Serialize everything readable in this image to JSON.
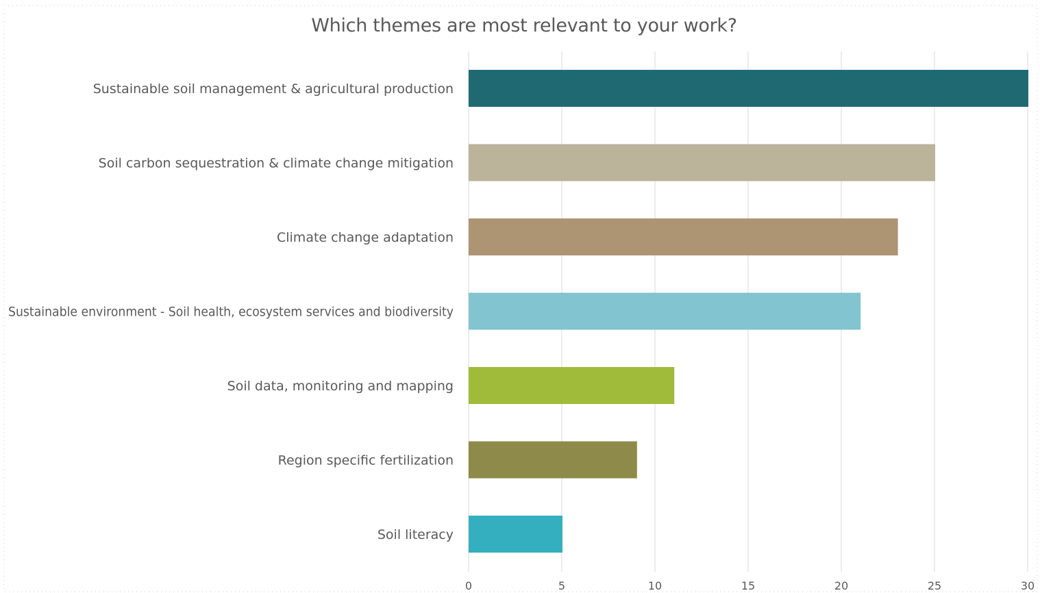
{
  "chart_data": {
    "type": "bar",
    "orientation": "horizontal",
    "title": "Which themes are most relevant to your work?",
    "xlabel": "",
    "ylabel": "",
    "categories": [
      "Sustainable soil management & agricultural production",
      "Soil carbon sequestration & climate change mitigation",
      "Climate change adaptation",
      "Sustainable environment - Soil health, ecosystem services and biodiversity",
      "Soil data, monitoring and mapping",
      "Region specific fertilization",
      "Soil literacy"
    ],
    "values": [
      30,
      25,
      23,
      21,
      11,
      9,
      5
    ],
    "colors": [
      "#1F6A72",
      "#BBB39A",
      "#AD9472",
      "#82C4CF",
      "#A0BA3A",
      "#8E8B4A",
      "#33AFBF"
    ],
    "xlim": [
      0,
      30
    ],
    "xticks": [
      0,
      5,
      10,
      15,
      20,
      25,
      30
    ],
    "grid": "vertical",
    "legend": "none"
  }
}
